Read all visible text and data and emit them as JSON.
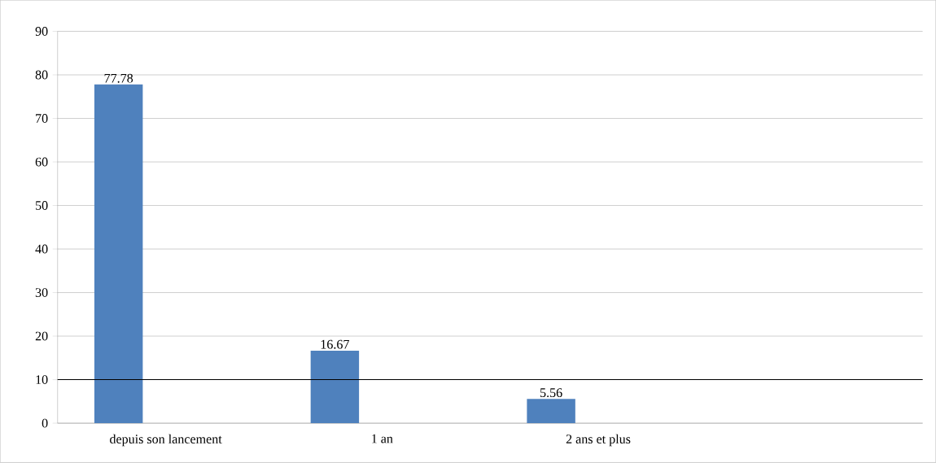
{
  "chart_data": {
    "type": "bar",
    "categories": [
      "depuis son lancement",
      "1 an",
      "2 ans et plus",
      null
    ],
    "values": [
      77.78,
      16.67,
      5.56,
      null
    ],
    "color": "#4f81bd",
    "ylim": [
      0,
      90
    ],
    "yticks": [
      0,
      10,
      20,
      30,
      40,
      50,
      60,
      70,
      80,
      90
    ],
    "grid": "y",
    "data_labels": true,
    "ref_lines": [
      {
        "axis": "y",
        "value": 10,
        "color": "#000000"
      }
    ]
  }
}
